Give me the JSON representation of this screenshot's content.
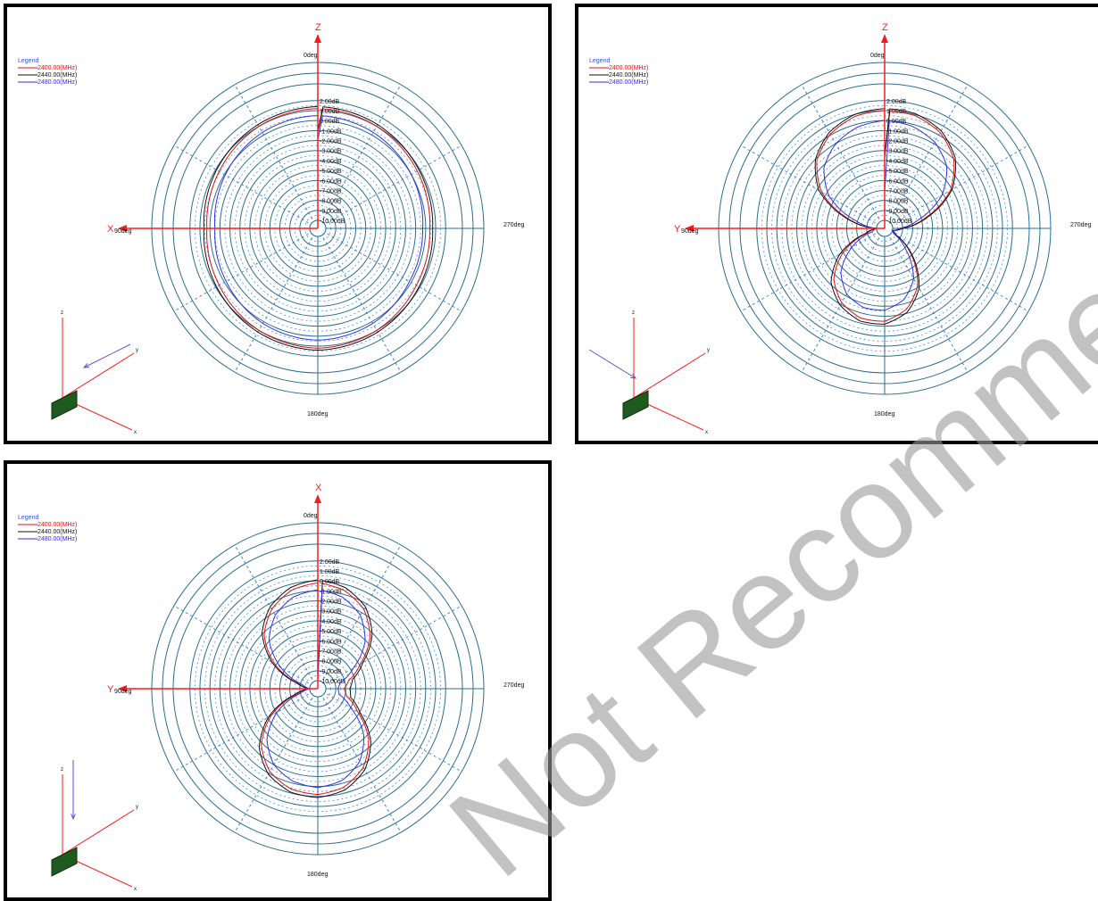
{
  "colors": {
    "red": "#e01010",
    "black": "#111111",
    "blue": "#3030e8",
    "grid": "#2a6f8f",
    "gridDash": "#3c7fd0",
    "axis": "#ff1a1a",
    "legendTitle": "#3050d0",
    "board": "#1f5a1f",
    "watermark": "#9a9a9a"
  },
  "watermark": "Not Recommended for New Designs",
  "chart_data": [
    {
      "type": "polar",
      "axis_label_top": "Z",
      "axis_label_left": "X",
      "angle_top": "0deg",
      "angle_left": "90deg",
      "angle_right": "270deg",
      "angle_bottom": "180deg",
      "legend_title": "Legend",
      "rings": [
        "2.00dB",
        "1.00dB",
        "0.00dB",
        "-1.00dB",
        "-2.00dB",
        "-3.00dB",
        "-4.00dB",
        "-5.00dB",
        "-6.00dB",
        "-7.00dB",
        "-8.00dB",
        "-9.00dB",
        "-10.00dB"
      ],
      "series": [
        {
          "name": "2400.00(MHz)",
          "color": "red",
          "angles_deg": [
            0,
            30,
            60,
            90,
            120,
            150,
            180,
            210,
            240,
            270,
            300,
            330
          ],
          "gain_dB": [
            1.2,
            1.0,
            0.6,
            0.3,
            0.6,
            1.0,
            1.2,
            1.0,
            0.6,
            0.4,
            0.7,
            1.0
          ]
        },
        {
          "name": "2440.00(MHz)",
          "color": "black",
          "angles_deg": [
            0,
            30,
            60,
            90,
            120,
            150,
            180,
            210,
            240,
            270,
            300,
            330
          ],
          "gain_dB": [
            1.4,
            1.2,
            0.9,
            0.6,
            0.9,
            1.2,
            1.4,
            1.2,
            0.9,
            0.7,
            0.9,
            1.2
          ]
        },
        {
          "name": "2480.00(MHz)",
          "color": "blue",
          "angles_deg": [
            0,
            30,
            60,
            90,
            120,
            150,
            180,
            210,
            240,
            270,
            300,
            330
          ],
          "gain_dB": [
            0.5,
            0.3,
            -0.1,
            -0.5,
            -0.2,
            0.2,
            0.4,
            0.2,
            -0.2,
            -0.3,
            0.0,
            0.3
          ]
        }
      ]
    },
    {
      "type": "polar",
      "axis_label_top": "Z",
      "axis_label_left": "Y",
      "angle_top": "0deg",
      "angle_left": "90deg",
      "angle_right": "270deg",
      "angle_bottom": "180deg",
      "legend_title": "Legend",
      "rings": [
        "2.00dB",
        "1.00dB",
        "0.00dB",
        "-1.00dB",
        "-2.00dB",
        "-3.00dB",
        "-4.00dB",
        "-5.00dB",
        "-6.00dB",
        "-7.00dB",
        "-8.00dB",
        "-9.00dB",
        "-10.00dB"
      ],
      "series": [
        {
          "name": "2400.00(MHz)",
          "color": "red",
          "angles_deg": [
            0,
            15,
            30,
            45,
            60,
            75,
            90,
            105,
            120,
            135,
            150,
            165,
            180,
            195,
            210,
            225,
            240,
            255,
            270,
            285,
            300,
            315,
            330,
            345
          ],
          "gain_dB": [
            1.0,
            0.8,
            0.1,
            -1.2,
            -3.5,
            -7.0,
            -10.0,
            -9.0,
            -6.0,
            -3.6,
            -2.2,
            -1.5,
            -1.5,
            -2.4,
            -4.2,
            -7.0,
            -9.5,
            -10.0,
            -9.0,
            -6.5,
            -3.2,
            -1.0,
            0.3,
            0.9
          ]
        },
        {
          "name": "2440.00(MHz)",
          "color": "black",
          "angles_deg": [
            0,
            15,
            30,
            45,
            60,
            75,
            90,
            105,
            120,
            135,
            150,
            165,
            180,
            195,
            210,
            225,
            240,
            255,
            270,
            285,
            300,
            315,
            330,
            345
          ],
          "gain_dB": [
            1.2,
            1.0,
            0.3,
            -1.0,
            -3.2,
            -6.8,
            -10.0,
            -8.8,
            -5.6,
            -3.2,
            -1.9,
            -1.2,
            -1.2,
            -2.1,
            -3.9,
            -6.8,
            -9.5,
            -10.0,
            -9.0,
            -6.3,
            -3.0,
            -0.8,
            0.5,
            1.1
          ]
        },
        {
          "name": "2480.00(MHz)",
          "color": "blue",
          "angles_deg": [
            0,
            15,
            30,
            45,
            60,
            75,
            90,
            105,
            120,
            135,
            150,
            165,
            180,
            195,
            210,
            225,
            240,
            255,
            270,
            285,
            300,
            315,
            330,
            345
          ],
          "gain_dB": [
            0.0,
            -0.3,
            -1.0,
            -2.2,
            -4.4,
            -7.8,
            -10.0,
            -9.5,
            -7.0,
            -4.6,
            -3.2,
            -2.6,
            -2.6,
            -3.4,
            -5.0,
            -7.8,
            -9.8,
            -10.0,
            -9.3,
            -7.2,
            -4.2,
            -2.0,
            -0.8,
            -0.2
          ]
        }
      ]
    },
    {
      "type": "polar",
      "axis_label_top": "X",
      "axis_label_left": "Y",
      "angle_top": "0deg",
      "angle_left": "90deg",
      "angle_right": "270deg",
      "angle_bottom": "180deg",
      "legend_title": "Legend",
      "rings": [
        "2.00dB",
        "1.00dB",
        "0.00dB",
        "-1.00dB",
        "-2.00dB",
        "-3.00dB",
        "-4.00dB",
        "-5.00dB",
        "-6.00dB",
        "-7.00dB",
        "-8.00dB",
        "-9.00dB",
        "-10.00dB"
      ],
      "series": [
        {
          "name": "2400.00(MHz)",
          "color": "red",
          "angles_deg": [
            0,
            15,
            30,
            45,
            60,
            75,
            90,
            105,
            120,
            135,
            150,
            165,
            180,
            195,
            210,
            225,
            240,
            255,
            270,
            285,
            300,
            315,
            330,
            345
          ],
          "gain_dB": [
            -0.2,
            -0.6,
            -1.6,
            -3.2,
            -5.8,
            -8.8,
            -10.0,
            -8.6,
            -5.4,
            -2.8,
            -1.2,
            -0.4,
            -0.2,
            -0.6,
            -1.7,
            -3.6,
            -6.2,
            -7.8,
            -8.2,
            -7.6,
            -5.9,
            -3.4,
            -1.6,
            -0.6
          ]
        },
        {
          "name": "2440.00(MHz)",
          "color": "black",
          "angles_deg": [
            0,
            15,
            30,
            45,
            60,
            75,
            90,
            105,
            120,
            135,
            150,
            165,
            180,
            195,
            210,
            225,
            240,
            255,
            270,
            285,
            300,
            315,
            330,
            345
          ],
          "gain_dB": [
            0.1,
            -0.3,
            -1.3,
            -2.9,
            -5.5,
            -8.6,
            -10.0,
            -8.3,
            -5.1,
            -2.5,
            -0.9,
            -0.1,
            0.1,
            -0.3,
            -1.4,
            -3.3,
            -5.9,
            -7.4,
            -7.6,
            -7.2,
            -5.6,
            -3.1,
            -1.3,
            -0.3
          ]
        },
        {
          "name": "2480.00(MHz)",
          "color": "blue",
          "angles_deg": [
            0,
            15,
            30,
            45,
            60,
            75,
            90,
            105,
            120,
            135,
            150,
            165,
            180,
            195,
            210,
            225,
            240,
            255,
            270,
            285,
            300,
            315,
            330,
            345
          ],
          "gain_dB": [
            -0.9,
            -1.3,
            -2.3,
            -3.9,
            -6.5,
            -9.2,
            -10.0,
            -9.0,
            -6.1,
            -3.6,
            -2.0,
            -1.2,
            -0.9,
            -1.3,
            -2.4,
            -4.3,
            -7.0,
            -8.6,
            -8.8,
            -8.5,
            -6.7,
            -4.1,
            -2.3,
            -1.3
          ]
        }
      ]
    }
  ]
}
